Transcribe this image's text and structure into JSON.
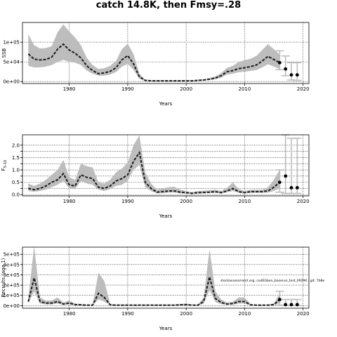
{
  "title": "catch 14.8K, then Fmsy=.28",
  "colors": {
    "band": "#bdbdbd",
    "line": "#1a1a1a",
    "points": "#000000",
    "future_bars": "#bdbdbd",
    "grid": "#000000"
  },
  "chart_data": [
    {
      "type": "line",
      "name": "ssb",
      "xlabel": "Years",
      "ylabel": "SSB",
      "xlim": [
        1972,
        2021
      ],
      "ylim": [
        -5000,
        150000
      ],
      "xticks": [
        1980,
        1990,
        2000,
        2010,
        2020
      ],
      "yticks": [
        0,
        50000,
        100000
      ],
      "ytick_labels": [
        "0e+00",
        "5e+04",
        "1e+05"
      ],
      "grid": true,
      "x": [
        1973,
        1974,
        1975,
        1976,
        1977,
        1978,
        1979,
        1980,
        1981,
        1982,
        1983,
        1984,
        1985,
        1986,
        1987,
        1988,
        1989,
        1990,
        1991,
        1992,
        1993,
        1994,
        1995,
        1996,
        1997,
        1998,
        1999,
        2000,
        2001,
        2002,
        2003,
        2004,
        2005,
        2006,
        2007,
        2008,
        2009,
        2010,
        2011,
        2012,
        2013,
        2014,
        2015,
        2016
      ],
      "y": [
        70000,
        57000,
        55000,
        56000,
        62000,
        82000,
        95000,
        80000,
        72000,
        60000,
        40000,
        28000,
        20000,
        22000,
        26000,
        35000,
        55000,
        66000,
        45000,
        12000,
        3000,
        2000,
        2000,
        2000,
        2000,
        2000,
        2000,
        2000,
        2000,
        3000,
        4000,
        6000,
        9000,
        15000,
        25000,
        28000,
        33000,
        35000,
        38000,
        42000,
        52000,
        64000,
        56000,
        48000
      ],
      "lower": [
        40000,
        36000,
        36000,
        38000,
        42000,
        50000,
        55000,
        50000,
        48000,
        42000,
        28000,
        20000,
        15000,
        15000,
        18000,
        24000,
        38000,
        45000,
        30000,
        7000,
        1500,
        1000,
        1000,
        1000,
        1000,
        1000,
        1000,
        1000,
        1000,
        2000,
        2500,
        4000,
        6000,
        10000,
        18000,
        20000,
        24000,
        25000,
        27000,
        29000,
        36000,
        44000,
        38000,
        32000
      ],
      "upper": [
        120000,
        92000,
        84000,
        85000,
        90000,
        125000,
        145000,
        127000,
        112000,
        92000,
        60000,
        42000,
        32000,
        34000,
        40000,
        52000,
        82000,
        96000,
        70000,
        20000,
        5000,
        3500,
        3500,
        3500,
        3500,
        3500,
        3500,
        3500,
        3500,
        4500,
        6000,
        9000,
        13000,
        22000,
        35000,
        40000,
        50000,
        54000,
        58000,
        65000,
        80000,
        95000,
        82000,
        68000
      ],
      "projection_points": {
        "x": [
          2016,
          2017,
          2018,
          2019
        ],
        "y": [
          48000,
          32000,
          17000,
          17000
        ]
      },
      "projection_intervals": [
        {
          "x": 2016,
          "low": 30000,
          "high": 78000
        },
        {
          "x": 2017,
          "low": 15000,
          "high": 65000
        },
        {
          "x": 2018,
          "low": 4000,
          "high": 48000
        },
        {
          "x": 2019,
          "low": 3000,
          "high": 48000
        }
      ]
    },
    {
      "type": "line",
      "name": "fishing-mortality",
      "xlabel": "Years",
      "ylabel": "F",
      "ylabel_sub": "5-10",
      "xlim": [
        1972,
        2021
      ],
      "ylim": [
        -0.05,
        2.42
      ],
      "xticks": [
        1980,
        1990,
        2000,
        2010,
        2020
      ],
      "yticks": [
        0.0,
        0.25,
        0.5,
        0.75,
        1.0,
        1.25,
        1.5,
        1.75,
        2.0
      ],
      "ytick_labels": [
        "0.0",
        "0.5",
        "1.0",
        "1.5",
        "2.0"
      ],
      "grid": true,
      "x": [
        1973,
        1974,
        1975,
        1976,
        1977,
        1978,
        1979,
        1980,
        1981,
        1982,
        1983,
        1984,
        1985,
        1986,
        1987,
        1988,
        1989,
        1990,
        1991,
        1992,
        1993,
        1994,
        1995,
        1996,
        1997,
        1998,
        1999,
        2000,
        2001,
        2002,
        2003,
        2004,
        2005,
        2006,
        2007,
        2008,
        2009,
        2010,
        2011,
        2012,
        2013,
        2014,
        2015,
        2016
      ],
      "y": [
        0.25,
        0.2,
        0.25,
        0.35,
        0.5,
        0.6,
        0.85,
        0.4,
        0.35,
        0.8,
        0.7,
        0.65,
        0.3,
        0.25,
        0.35,
        0.55,
        0.65,
        0.8,
        1.35,
        1.7,
        0.5,
        0.25,
        0.1,
        0.12,
        0.15,
        0.15,
        0.1,
        0.08,
        0.05,
        0.08,
        0.09,
        0.1,
        0.12,
        0.08,
        0.15,
        0.25,
        0.12,
        0.08,
        0.12,
        0.12,
        0.12,
        0.15,
        0.3,
        0.5
      ],
      "lower": [
        0.15,
        0.12,
        0.15,
        0.2,
        0.3,
        0.4,
        0.55,
        0.25,
        0.22,
        0.55,
        0.45,
        0.4,
        0.2,
        0.15,
        0.22,
        0.35,
        0.4,
        0.55,
        1.0,
        1.2,
        0.3,
        0.15,
        0.05,
        0.06,
        0.08,
        0.08,
        0.05,
        0.04,
        0.03,
        0.04,
        0.05,
        0.06,
        0.07,
        0.05,
        0.1,
        0.15,
        0.07,
        0.05,
        0.07,
        0.07,
        0.07,
        0.08,
        0.15,
        0.25
      ],
      "upper": [
        0.45,
        0.35,
        0.45,
        0.6,
        0.8,
        1.0,
        1.4,
        0.7,
        0.6,
        1.25,
        1.15,
        1.1,
        0.5,
        0.45,
        0.6,
        0.9,
        1.05,
        1.3,
        2.0,
        2.4,
        0.9,
        0.45,
        0.2,
        0.25,
        0.3,
        0.32,
        0.2,
        0.15,
        0.1,
        0.15,
        0.16,
        0.18,
        0.2,
        0.15,
        0.28,
        0.5,
        0.22,
        0.15,
        0.2,
        0.2,
        0.2,
        0.3,
        0.6,
        1.0
      ],
      "projection_points": {
        "x": [
          2016,
          2017,
          2018,
          2019
        ],
        "y": [
          0.5,
          0.75,
          0.28,
          0.28
        ]
      },
      "projection_intervals": [
        {
          "x": 2016,
          "low": 0.1,
          "high": 1.0
        },
        {
          "x": 2017,
          "low": 0.05,
          "high": 2.42
        },
        {
          "x": 2018,
          "low": 0.05,
          "high": 2.28
        },
        {
          "x": 2019,
          "low": 0.05,
          "high": 2.28
        }
      ]
    },
    {
      "type": "line",
      "name": "recruits",
      "xlabel": "Years",
      "ylabel": "Recruits (age 1)",
      "xlim": [
        1972,
        2021
      ],
      "ylim": [
        -25000,
        570000
      ],
      "xticks": [
        1980,
        1990,
        2000,
        2010,
        2020
      ],
      "yticks": [
        0,
        100000,
        200000,
        300000,
        400000,
        500000
      ],
      "ytick_labels": [
        "0e+00",
        "1e+05",
        "2e+05",
        "3e+05",
        "4e+05",
        "5e+05"
      ],
      "grid": true,
      "annotation": "stockassessment.org, codEGben_baserun_test_Il9290 ; git: 7b8e",
      "x": [
        1973,
        1974,
        1975,
        1976,
        1977,
        1978,
        1979,
        1980,
        1981,
        1982,
        1983,
        1984,
        1985,
        1986,
        1987,
        1988,
        1989,
        1990,
        1991,
        1992,
        1993,
        1994,
        1995,
        1996,
        1997,
        1998,
        1999,
        2000,
        2001,
        2002,
        2003,
        2004,
        2005,
        2006,
        2007,
        2008,
        2009,
        2010,
        2011,
        2012,
        2013,
        2014,
        2015,
        2016
      ],
      "y": [
        40000,
        270000,
        40000,
        25000,
        25000,
        40000,
        15000,
        25000,
        10000,
        8000,
        5000,
        5000,
        120000,
        80000,
        8000,
        5000,
        5000,
        5000,
        5000,
        5000,
        5000,
        5000,
        5000,
        5000,
        5000,
        5000,
        8000,
        10000,
        5000,
        5000,
        40000,
        280000,
        70000,
        30000,
        15000,
        20000,
        40000,
        40000,
        8000,
        5000,
        5000,
        5000,
        10000,
        60000
      ],
      "lower": [
        20000,
        140000,
        20000,
        12000,
        12000,
        20000,
        8000,
        12000,
        5000,
        4000,
        2000,
        2000,
        60000,
        40000,
        4000,
        2000,
        2000,
        2000,
        2000,
        2000,
        2000,
        2000,
        2000,
        2000,
        2000,
        2000,
        4000,
        5000,
        2000,
        2000,
        20000,
        150000,
        35000,
        15000,
        8000,
        10000,
        20000,
        20000,
        4000,
        2000,
        2000,
        2000,
        5000,
        25000
      ],
      "upper": [
        80000,
        580000,
        80000,
        50000,
        50000,
        80000,
        30000,
        50000,
        20000,
        16000,
        10000,
        10000,
        320000,
        240000,
        16000,
        10000,
        10000,
        10000,
        10000,
        10000,
        10000,
        10000,
        10000,
        10000,
        10000,
        10000,
        16000,
        20000,
        10000,
        10000,
        80000,
        550000,
        140000,
        60000,
        30000,
        40000,
        80000,
        80000,
        16000,
        10000,
        10000,
        10000,
        20000,
        120000
      ],
      "projection_points": {
        "x": [
          2016,
          2017,
          2018,
          2019
        ],
        "y": [
          60000,
          10000,
          10000,
          10000
        ]
      },
      "projection_intervals": [
        {
          "x": 2016,
          "low": 5000,
          "high": 140000
        },
        {
          "x": 2017,
          "low": 2000,
          "high": 60000
        },
        {
          "x": 2018,
          "low": 2000,
          "high": 60000
        },
        {
          "x": 2019,
          "low": 2000,
          "high": 60000
        }
      ]
    }
  ]
}
